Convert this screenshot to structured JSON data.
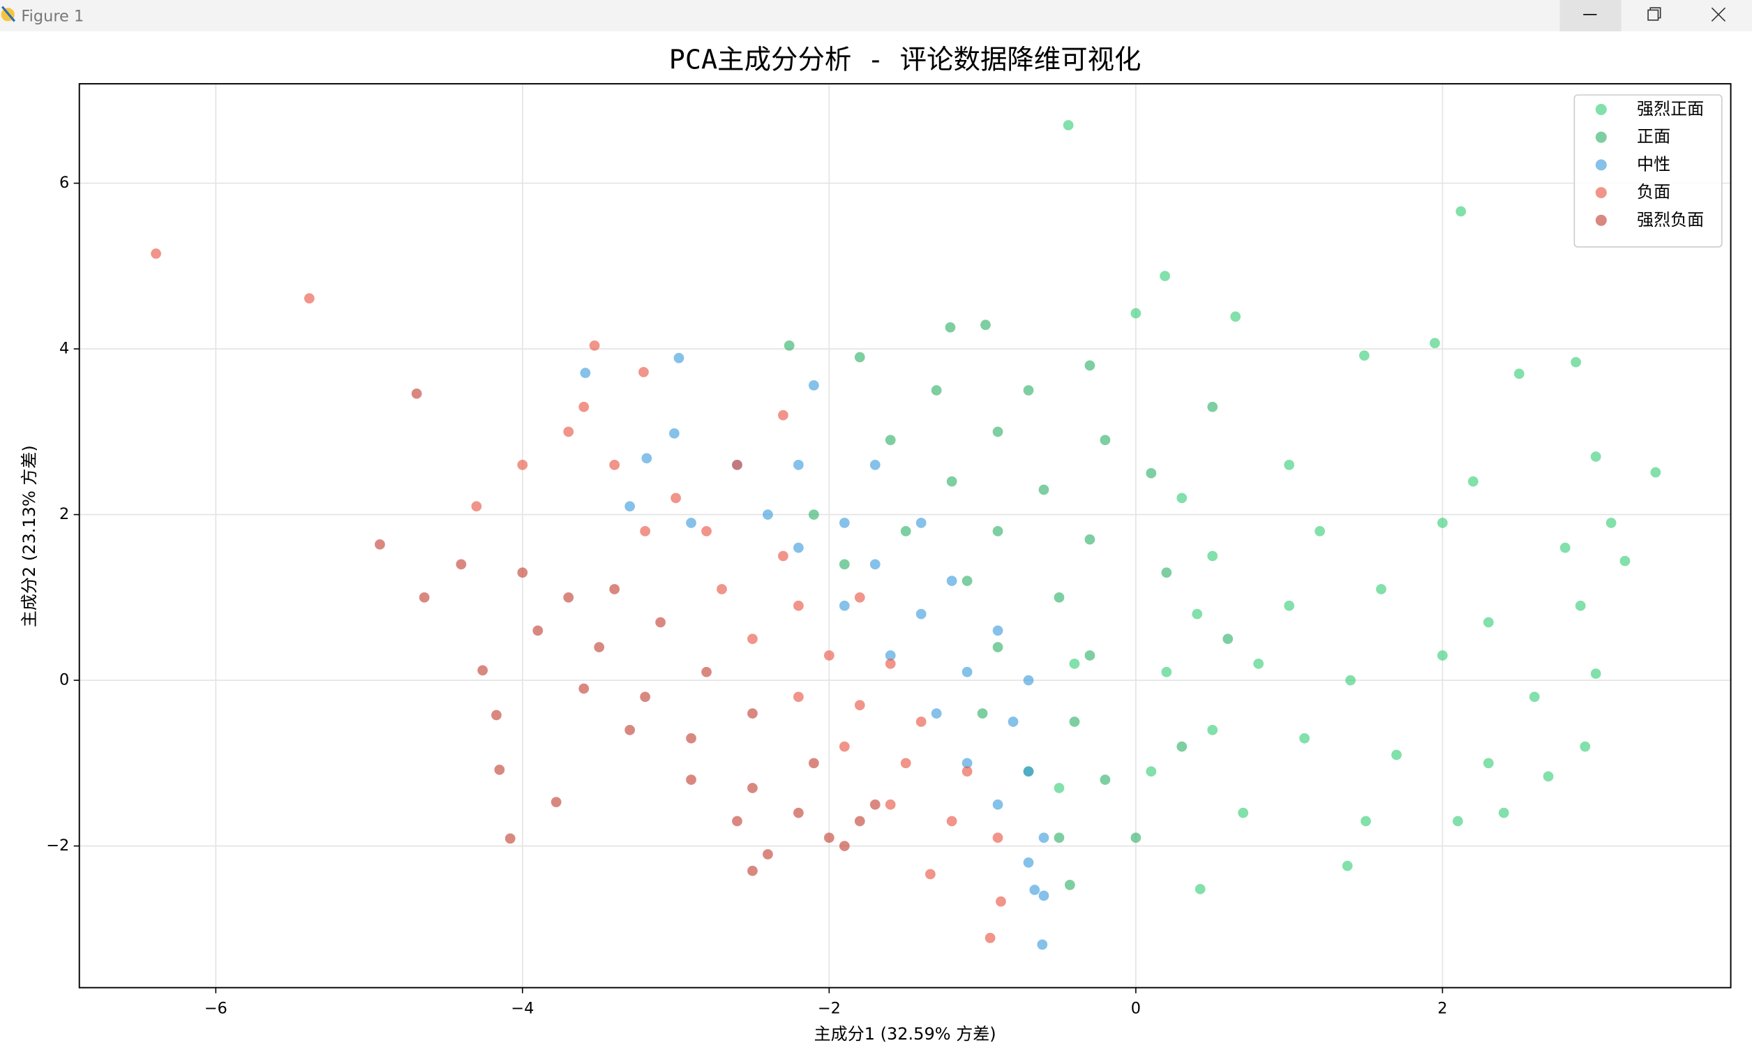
{
  "window": {
    "title": "Figure 1"
  },
  "chart_data": {
    "type": "scatter",
    "title": "PCA主成分分析 - 评论数据降维可视化",
    "x_label": "主成分1 (32.59% 方差)",
    "y_label": "主成分2 (23.13% 方差)",
    "xlim": [
      -6.89,
      3.88
    ],
    "ylim": [
      -3.71,
      7.2
    ],
    "xticks": [
      {
        "value": -6,
        "label": "−6"
      },
      {
        "value": -4,
        "label": "−4"
      },
      {
        "value": -2,
        "label": "−2"
      },
      0,
      2
    ],
    "yticks": [
      {
        "value": -2,
        "label": "−2"
      },
      0,
      2,
      4,
      6
    ],
    "grid": true,
    "legend": "upper right",
    "alpha": 0.6,
    "series": [
      {
        "name": "强烈正面",
        "color": "#2ecc71",
        "x": [
          -0.44,
          2.12,
          0.19,
          3.39,
          0.42,
          3.19,
          3.0,
          2.93,
          2.69,
          1.38,
          1.95,
          2.87,
          0,
          0.65,
          1.49,
          2.5,
          3.0,
          2.2,
          1.0,
          0.3,
          0.5,
          1.2,
          2.0,
          2.8,
          0.4,
          1.0,
          1.6,
          2.3,
          2.9,
          0.2,
          0.8,
          1.4,
          2.0,
          2.6,
          0.5,
          1.1,
          1.7,
          2.3,
          0.7,
          1.5,
          2.1,
          0.1,
          -0.4,
          -0.5,
          3.1,
          2.4
        ],
        "values": [
          6.7,
          5.66,
          4.88,
          2.51,
          -2.52,
          1.44,
          0.08,
          -0.8,
          -1.16,
          -2.24,
          4.07,
          3.84,
          4.43,
          4.39,
          3.92,
          3.7,
          2.7,
          2.4,
          2.6,
          2.2,
          1.5,
          1.8,
          1.9,
          1.6,
          0.8,
          0.9,
          1.1,
          0.7,
          0.9,
          0.1,
          0.2,
          0,
          0.3,
          -0.2,
          -0.6,
          -0.7,
          -0.9,
          -1.0,
          -1.6,
          -1.7,
          -1.7,
          -1.1,
          0.2,
          -1.3,
          1.9,
          -1.6
        ]
      },
      {
        "name": "正面",
        "color": "#27ae60",
        "x": [
          -1.8,
          -1.3,
          -0.7,
          -0.3,
          -1.6,
          -0.9,
          -0.2,
          0.5,
          -1.2,
          -0.6,
          0.1,
          -1.5,
          -0.9,
          -0.3,
          -1.1,
          -0.5,
          0.2,
          -0.9,
          -0.3,
          -1.0,
          -0.4,
          -0.7,
          -0.2,
          -0.5,
          0,
          -2.1,
          -1.9,
          -0.43,
          -2.26,
          -1.21,
          -0.98,
          0.6,
          0.3
        ],
        "values": [
          3.9,
          3.5,
          3.5,
          3.8,
          2.9,
          3.0,
          2.9,
          3.3,
          2.4,
          2.3,
          2.5,
          1.8,
          1.8,
          1.7,
          1.2,
          1.0,
          1.3,
          0.4,
          0.3,
          -0.4,
          -0.5,
          -1.1,
          -1.2,
          -1.9,
          -1.9,
          2.0,
          1.4,
          -2.47,
          4.04,
          4.26,
          4.29,
          0.5,
          -0.8
        ]
      },
      {
        "name": "中性",
        "color": "#3498db",
        "x": [
          -3.59,
          -2.98,
          -3.01,
          -3.19,
          -0.61,
          -0.66,
          -2.1,
          -2.6,
          -2.2,
          -1.7,
          -2.4,
          -1.9,
          -1.4,
          -2.2,
          -1.7,
          -1.2,
          -1.9,
          -1.4,
          -0.9,
          -1.6,
          -1.1,
          -0.7,
          -1.3,
          -0.8,
          -1.1,
          -0.7,
          -0.9,
          -0.6,
          -0.7,
          -3.3,
          -2.9,
          -0.6
        ],
        "values": [
          3.71,
          3.89,
          2.98,
          2.68,
          -3.19,
          -2.53,
          3.56,
          2.6,
          2.6,
          2.6,
          2.0,
          1.9,
          1.9,
          1.6,
          1.4,
          1.2,
          0.9,
          0.8,
          0.6,
          0.3,
          0.1,
          0,
          -0.4,
          -0.5,
          -1.0,
          -1.1,
          -1.5,
          -1.9,
          -2.2,
          2.1,
          1.9,
          -2.6
        ]
      },
      {
        "name": "负面",
        "color": "#e74c3c",
        "x": [
          -6.39,
          -5.39,
          -3.53,
          -3.21,
          -0.95,
          -0.88,
          -1.34,
          -4.0,
          -3.7,
          -3.4,
          -3.0,
          -2.6,
          -2.3,
          -3.2,
          -2.8,
          -2.3,
          -2.7,
          -2.2,
          -1.8,
          -2.5,
          -2.0,
          -1.6,
          -2.2,
          -1.8,
          -1.4,
          -1.9,
          -1.5,
          -1.1,
          -1.6,
          -1.2,
          -0.9,
          -4.3,
          -3.6
        ],
        "values": [
          5.15,
          4.61,
          4.04,
          3.72,
          -3.11,
          -2.67,
          -2.34,
          2.6,
          3.0,
          2.6,
          2.2,
          2.6,
          3.2,
          1.8,
          1.8,
          1.5,
          1.1,
          0.9,
          1.0,
          0.5,
          0.3,
          0.2,
          -0.2,
          -0.3,
          -0.5,
          -0.8,
          -1.0,
          -1.1,
          -1.5,
          -1.7,
          -1.9,
          2.1,
          3.3
        ]
      },
      {
        "name": "强烈负面",
        "color": "#c0392b",
        "x": [
          -4.69,
          -4.93,
          -4.08,
          -4.15,
          -4.26,
          -4.64,
          -3.78,
          -4.17,
          -4.4,
          -4.0,
          -3.7,
          -3.4,
          -3.9,
          -3.5,
          -3.1,
          -3.6,
          -3.2,
          -2.8,
          -3.3,
          -2.9,
          -2.5,
          -2.9,
          -2.5,
          -2.1,
          -2.6,
          -2.2,
          -1.8,
          -2.4,
          -2.0,
          -1.7,
          -2.5,
          -1.9
        ],
        "values": [
          3.46,
          1.64,
          -1.91,
          -1.08,
          0.12,
          1.0,
          -1.47,
          -0.42,
          1.4,
          1.3,
          1.0,
          1.1,
          0.6,
          0.4,
          0.7,
          -0.1,
          -0.2,
          0.1,
          -0.6,
          -0.7,
          -0.4,
          -1.2,
          -1.3,
          -1.0,
          -1.7,
          -1.6,
          -1.7,
          -2.1,
          -1.9,
          -1.5,
          -2.3,
          -2.0
        ]
      }
    ]
  }
}
